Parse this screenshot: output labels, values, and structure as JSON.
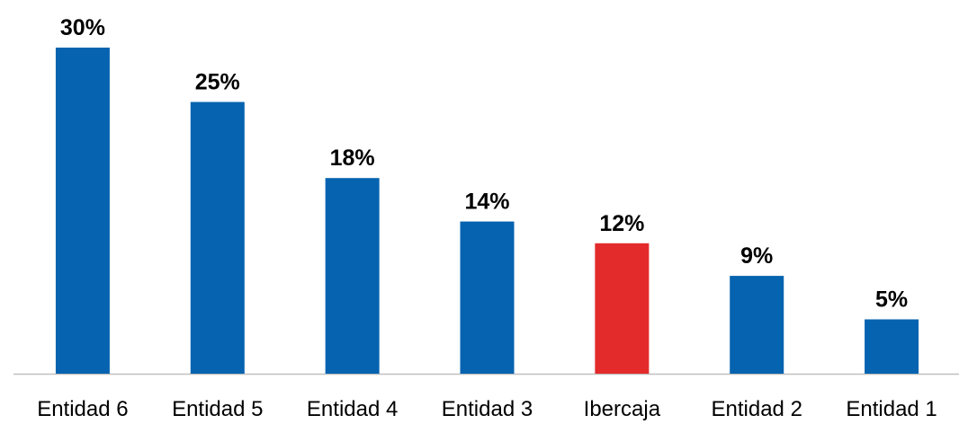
{
  "chart_data": {
    "type": "bar",
    "categories": [
      "Entidad 6",
      "Entidad 5",
      "Entidad 4",
      "Entidad 3",
      "Ibercaja",
      "Entidad 2",
      "Entidad 1"
    ],
    "values": [
      30,
      25,
      18,
      14,
      12,
      9,
      5
    ],
    "value_labels": [
      "30%",
      "25%",
      "18%",
      "14%",
      "12%",
      "9%",
      "5%"
    ],
    "colors": [
      "#0563b0",
      "#0563b0",
      "#0563b0",
      "#0563b0",
      "#e32b2b",
      "#0563b0",
      "#0563b0"
    ]
  }
}
